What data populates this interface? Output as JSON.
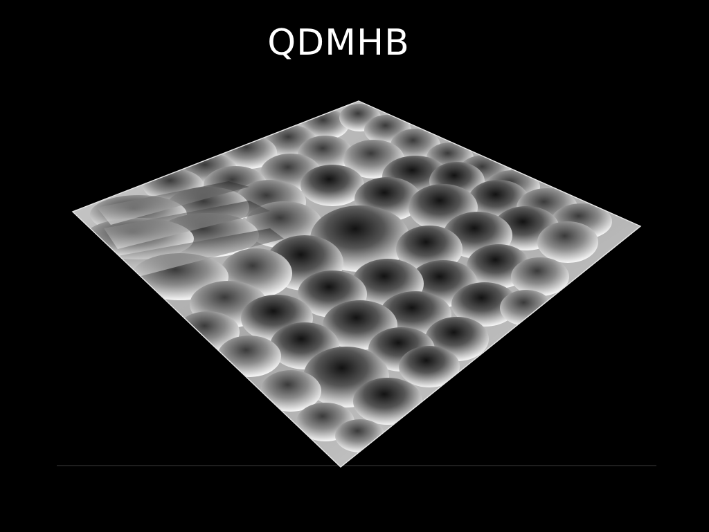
{
  "slide": {
    "title": "QDMHB"
  },
  "colors": {
    "background": "#000000",
    "title": "#ffffff",
    "surface_light": "#f2f2f2",
    "surface_dark": "#161616"
  }
}
